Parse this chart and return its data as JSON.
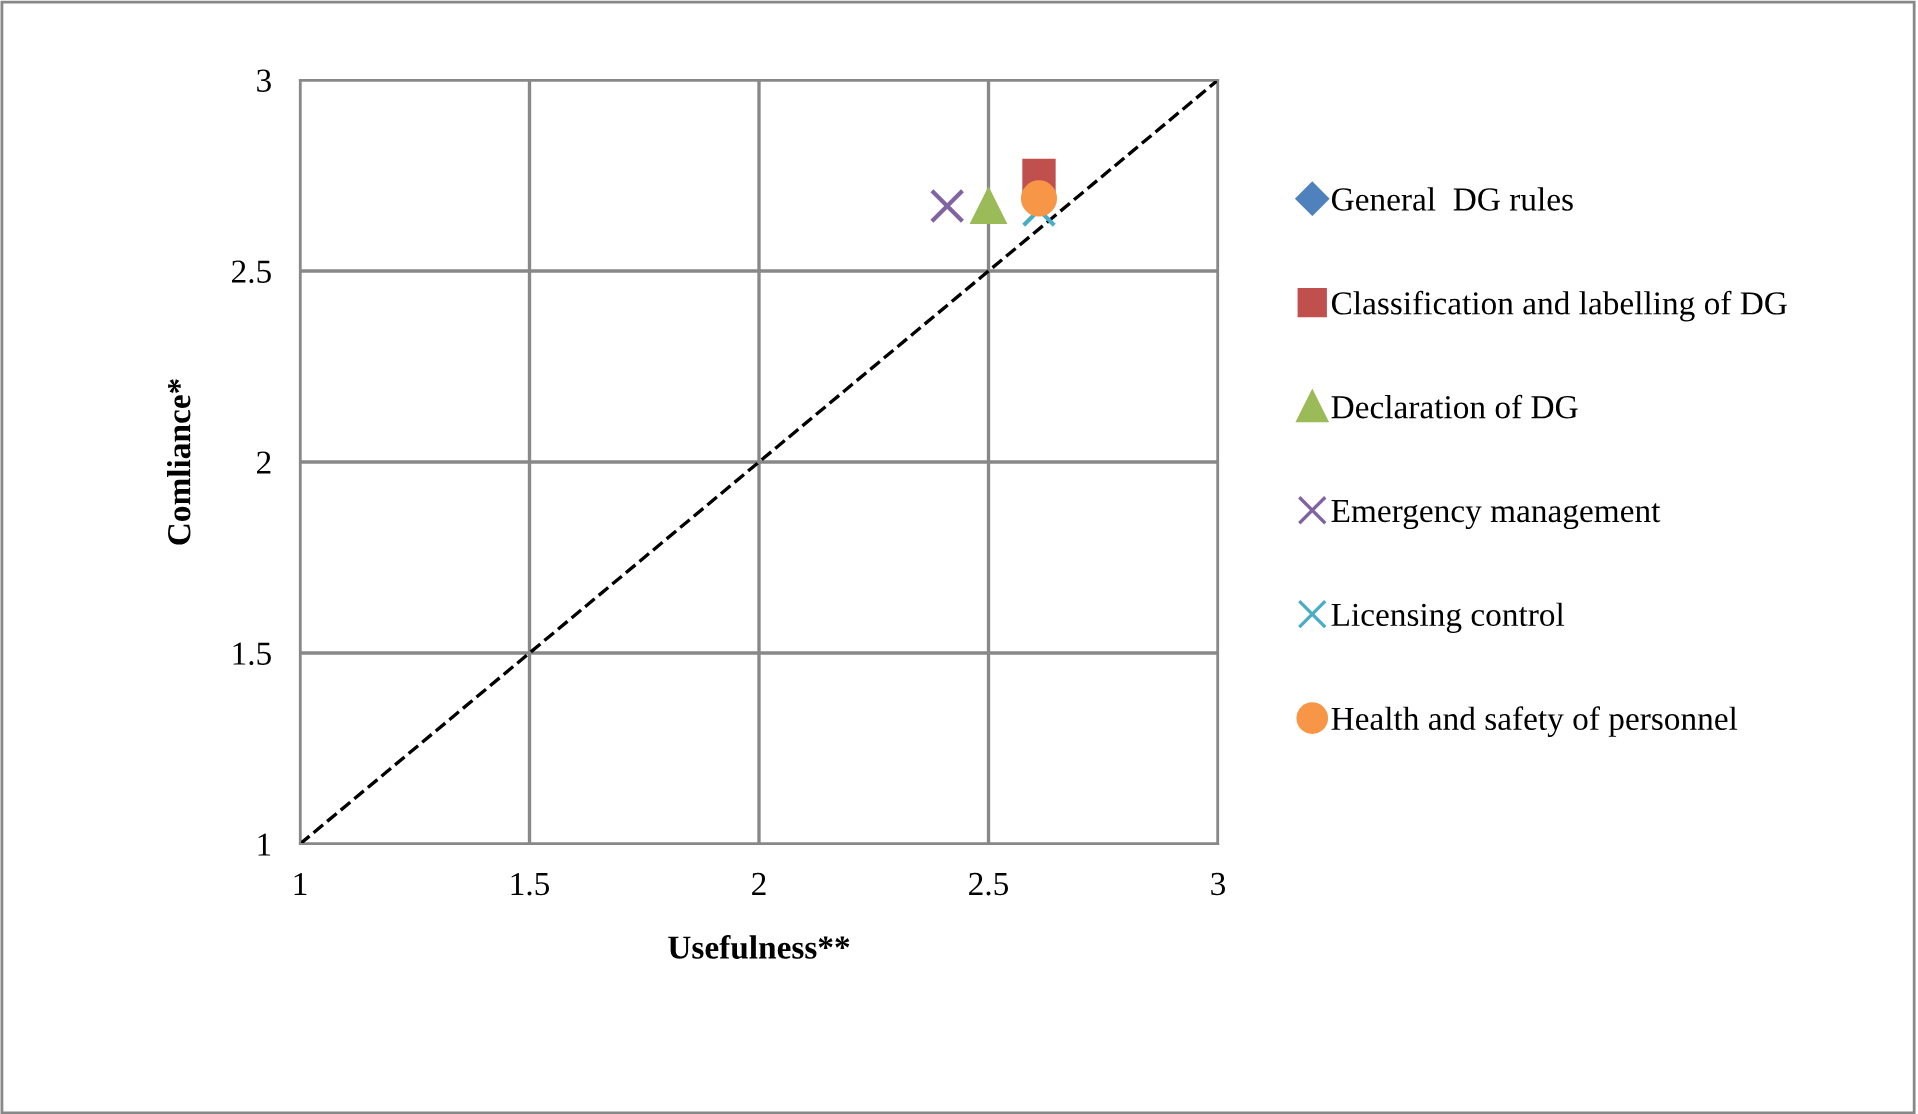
{
  "chart_data": {
    "type": "scatter",
    "xlabel": "Usefulness**",
    "ylabel": "Comliance*",
    "xlim": [
      1,
      3
    ],
    "ylim": [
      1,
      3
    ],
    "xticks": [
      1,
      1.5,
      2,
      2.5,
      3
    ],
    "yticks": [
      1,
      1.5,
      2,
      2.5,
      3
    ],
    "grid": true,
    "legend": "right",
    "series": [
      {
        "name": "General  DG rules",
        "color": "#4f81bd",
        "marker": "diamond",
        "x": [
          null
        ],
        "values": [
          null
        ]
      },
      {
        "name": "Classification and labelling of DG",
        "color": "#c0504d",
        "marker": "square",
        "x": [
          2.61
        ],
        "values": [
          2.75
        ]
      },
      {
        "name": "Declaration of DG",
        "color": "#9bbb59",
        "marker": "triangle",
        "x": [
          2.5
        ],
        "values": [
          2.67
        ]
      },
      {
        "name": "Emergency management",
        "color": "#8064a2",
        "marker": "cross",
        "x": [
          2.41
        ],
        "values": [
          2.67
        ]
      },
      {
        "name": "Licensing control",
        "color": "#4bacc6",
        "marker": "cross",
        "x": [
          2.61
        ],
        "values": [
          2.66
        ]
      },
      {
        "name": "Health and safety of personnel",
        "color": "#f79646",
        "marker": "circle",
        "x": [
          2.61
        ],
        "values": [
          2.69
        ]
      },
      {
        "type": "line",
        "color": "#000000",
        "line_style": "dashed",
        "marker": "none",
        "x": [
          1,
          3
        ],
        "values": [
          1,
          3
        ]
      }
    ]
  }
}
